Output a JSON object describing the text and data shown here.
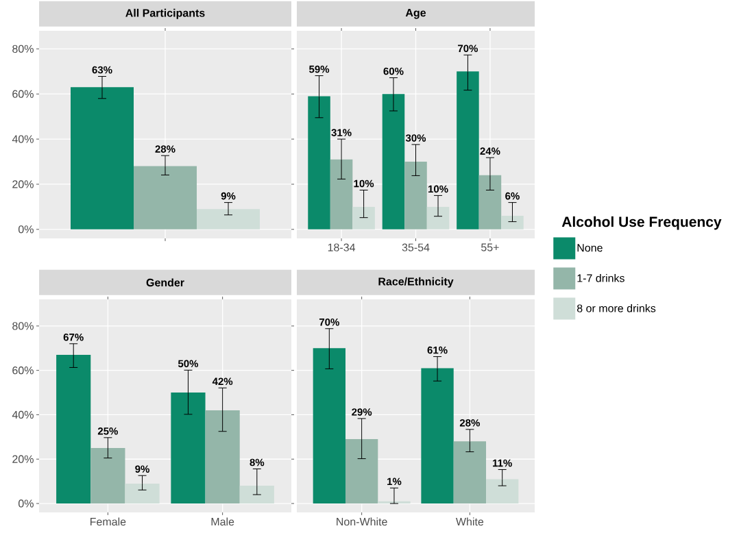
{
  "chart_data": [
    {
      "type": "bar",
      "title": "All Participants",
      "categories": [
        null
      ],
      "ylim": [
        -4,
        88
      ],
      "yticks": [
        {
          "value": 0,
          "label": "0%"
        },
        {
          "value": 20,
          "label": "20%"
        },
        {
          "value": 40,
          "label": "40%"
        },
        {
          "value": 60,
          "label": "60%"
        },
        {
          "value": 80,
          "label": "80%"
        }
      ],
      "grid": true,
      "legend": "right",
      "legend_title": "Alcohol Use Frequency",
      "series": [
        {
          "name": "None",
          "color": "#0b8a6a",
          "values": [
            63
          ],
          "errors": [
            [
              58,
              67.8
            ]
          ],
          "value_labels": [
            "63%"
          ]
        },
        {
          "name": "1-7 drinks",
          "color": "#94b6a9",
          "values": [
            28
          ],
          "errors": [
            [
              24.1,
              32.7
            ]
          ],
          "value_labels": [
            "28%"
          ]
        },
        {
          "name": "8 or more drinks",
          "color": "#cfded8",
          "values": [
            9
          ],
          "errors": [
            [
              6.4,
              11.9
            ]
          ],
          "value_labels": [
            "9%"
          ]
        }
      ]
    },
    {
      "type": "bar",
      "title": "Age",
      "categories": [
        "18-34",
        "35-54",
        "55+"
      ],
      "ylim": [
        -4,
        88
      ],
      "yticks": [
        0,
        20,
        40,
        60,
        80
      ],
      "tick_labels": "x",
      "grid": true,
      "series": [
        {
          "color": "#0b8a6a",
          "values": [
            59,
            60,
            70
          ],
          "errors": [
            [
              49.5,
              68.1
            ],
            [
              52.5,
              67.2
            ],
            [
              61.7,
              77.3
            ]
          ],
          "value_labels": [
            "59%",
            "60%",
            "70%"
          ]
        },
        {
          "color": "#94b6a9",
          "values": [
            31,
            30,
            24
          ],
          "errors": [
            [
              22.3,
              40
            ],
            [
              23.8,
              37.6
            ],
            [
              17.4,
              31.8
            ]
          ],
          "value_labels": [
            "31%",
            "30%",
            "24%"
          ]
        },
        {
          "color": "#cfded8",
          "values": [
            10,
            10,
            6
          ],
          "errors": [
            [
              5.2,
              17.4
            ],
            [
              5.8,
              15
            ],
            [
              3.4,
              11.9
            ]
          ],
          "value_labels": [
            "10%",
            "10%",
            "6%"
          ]
        }
      ]
    },
    {
      "type": "bar",
      "title": "Gender",
      "categories": [
        "Female",
        "Male"
      ],
      "ylim": [
        -4,
        92
      ],
      "yticks": [
        {
          "value": 0,
          "label": "0%"
        },
        {
          "value": 20,
          "label": "20%"
        },
        {
          "value": 40,
          "label": "40%"
        },
        {
          "value": 60,
          "label": "60%"
        },
        {
          "value": 80,
          "label": "80%"
        }
      ],
      "grid": true,
      "series": [
        {
          "color": "#0b8a6a",
          "values": [
            67,
            50
          ],
          "errors": [
            [
              61.3,
              72
            ],
            [
              40.2,
              60.1
            ]
          ],
          "value_labels": [
            "67%",
            "50%"
          ]
        },
        {
          "color": "#94b6a9",
          "values": [
            25,
            42
          ],
          "errors": [
            [
              20.5,
              29.7
            ],
            [
              32.5,
              52.1
            ]
          ],
          "value_labels": [
            "25%",
            "42%"
          ]
        },
        {
          "color": "#cfded8",
          "values": [
            9,
            8
          ],
          "errors": [
            [
              6.1,
              12.6
            ],
            [
              4,
              15.6
            ]
          ],
          "value_labels": [
            "9%",
            "8%"
          ]
        }
      ]
    },
    {
      "type": "bar",
      "title": "Race/Ethnicity",
      "categories": [
        "Non-White",
        "White"
      ],
      "ylim": [
        -4,
        92
      ],
      "yticks": [
        0,
        20,
        40,
        60,
        80
      ],
      "tick_labels": "x",
      "grid": true,
      "series": [
        {
          "color": "#0b8a6a",
          "values": [
            70,
            61
          ],
          "errors": [
            [
              60.7,
              78.8
            ],
            [
              55.2,
              66.2
            ]
          ],
          "value_labels": [
            "70%",
            "61%"
          ]
        },
        {
          "color": "#94b6a9",
          "values": [
            29,
            28
          ],
          "errors": [
            [
              20.2,
              38.3
            ],
            [
              23.3,
              33.4
            ]
          ],
          "value_labels": [
            "29%",
            "28%"
          ]
        },
        {
          "color": "#cfded8",
          "values": [
            1,
            11
          ],
          "errors": [
            [
              0,
              7
            ],
            [
              8,
              15.3
            ]
          ],
          "value_labels": [
            "1%",
            "11%"
          ]
        }
      ]
    }
  ]
}
